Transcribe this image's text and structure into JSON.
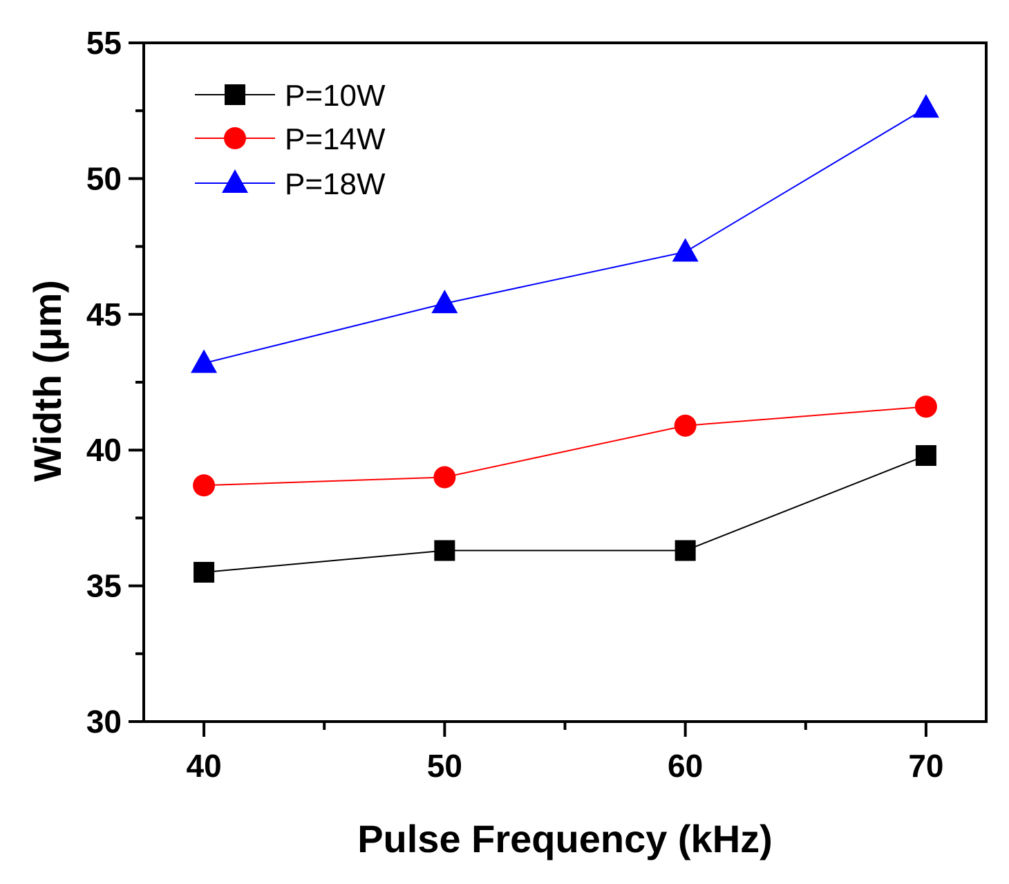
{
  "chart_data": {
    "type": "line",
    "title": "",
    "xlabel": "Pulse Frequency (kHz)",
    "ylabel": "Width (μm)",
    "xlim": [
      37.5,
      72.5
    ],
    "ylim": [
      30,
      55
    ],
    "xticks": [
      "40",
      "50",
      "60",
      "70"
    ],
    "yticks": [
      "30",
      "35",
      "40",
      "45",
      "50",
      "55"
    ],
    "x": [
      40,
      50,
      60,
      70
    ],
    "grid": false,
    "legend_position": "top-left",
    "series": [
      {
        "name": "P=10W",
        "values": [
          35.5,
          36.3,
          36.3,
          39.8
        ],
        "color": "#000000",
        "marker": "square"
      },
      {
        "name": "P=14W",
        "values": [
          38.7,
          39.0,
          40.9,
          41.6
        ],
        "color": "#ff0000",
        "marker": "circle"
      },
      {
        "name": "P=18W",
        "values": [
          43.2,
          45.4,
          47.3,
          52.6
        ],
        "color": "#0000ff",
        "marker": "triangle"
      }
    ]
  }
}
